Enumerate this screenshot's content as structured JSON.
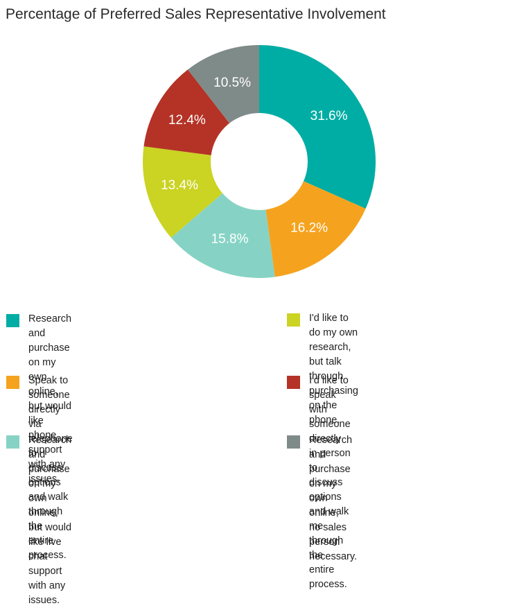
{
  "chart_data": {
    "type": "pie",
    "title": "Percentage of Preferred Sales Representative Involvement",
    "categories": [
      "Research and purchase on my own\nonline, but would like phone support\nwith any issues.",
      "Speak to someone directly via telephone\nto discuss options and walk through the\nentire process.",
      "Research and purchase on my own online,\nbut would like live chat support with any issues.",
      "I'd like to do my own research, but talk\nthrough purchasing on the phone.",
      "I'd like to speak with someone directly\nin person to discuss options and walk\nme through the entire process.",
      "Research and purchase on my own online,\nno sales person necessary."
    ],
    "values": [
      31.6,
      16.2,
      15.8,
      13.4,
      12.4,
      10.5
    ],
    "value_labels": [
      "31.6%",
      "16.2%",
      "15.8%",
      "13.4%",
      "12.4%",
      "10.5%"
    ],
    "colors": [
      "#00ada4",
      "#f5a31e",
      "#86d3c5",
      "#cbd323",
      "#b43326",
      "#7f8b89"
    ],
    "style": "donut",
    "legend_position": "bottom"
  }
}
